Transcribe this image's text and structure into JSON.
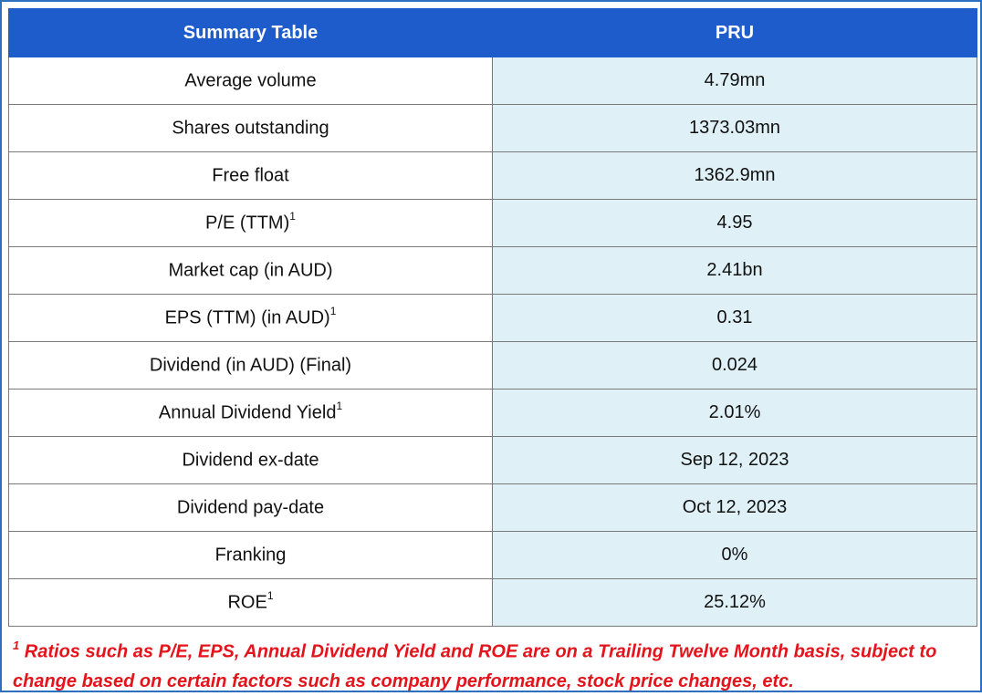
{
  "table": {
    "headers": [
      "Summary Table",
      "PRU"
    ],
    "rows": [
      {
        "label": "Average volume",
        "sup": "",
        "value": "4.79mn"
      },
      {
        "label": "Shares outstanding",
        "sup": "",
        "value": "1373.03mn"
      },
      {
        "label": "Free float",
        "sup": "",
        "value": "1362.9mn"
      },
      {
        "label": "P/E (TTM)",
        "sup": "1",
        "value": "4.95"
      },
      {
        "label": "Market cap (in AUD)",
        "sup": "",
        "value": "2.41bn"
      },
      {
        "label": "EPS (TTM) (in AUD)",
        "sup": "1",
        "value": "0.31"
      },
      {
        "label": "Dividend (in AUD) (Final)",
        "sup": "",
        "value": "0.024"
      },
      {
        "label": "Annual Dividend Yield",
        "sup": "1",
        "value": "2.01%"
      },
      {
        "label": "Dividend ex-date",
        "sup": "",
        "value": "Sep 12, 2023"
      },
      {
        "label": "Dividend pay-date",
        "sup": "",
        "value": "Oct 12, 2023"
      },
      {
        "label": "Franking",
        "sup": "",
        "value": "0%"
      },
      {
        "label": "ROE",
        "sup": "1",
        "value": "25.12%"
      }
    ]
  },
  "footnote": {
    "marker": "1",
    "text": "Ratios such as P/E, EPS, Annual Dividend Yield and ROE are on a Trailing Twelve Month basis, subject to change based on certain factors such as company performance, stock price changes, etc."
  },
  "colors": {
    "header_bg": "#1f5ccb",
    "value_bg": "#dff1f7",
    "frame_border": "#2e6fc0",
    "footnote": "#e3141b"
  }
}
